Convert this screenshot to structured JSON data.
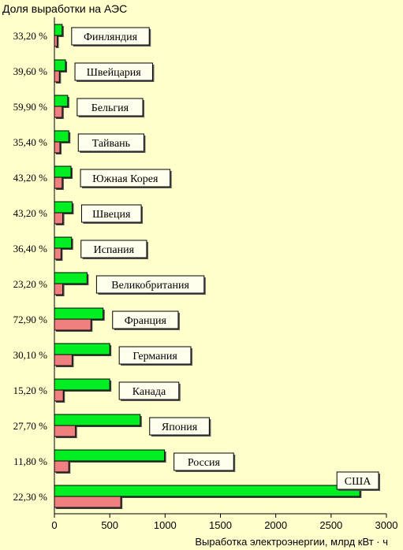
{
  "chart_data": {
    "type": "bar",
    "title": "Доля выработки на АЭС",
    "xlabel": "Выработка электроэнергии, млрд кВт · ч",
    "ylabel": "",
    "xlim": [
      0,
      3000
    ],
    "xticks": [
      0,
      500,
      1000,
      1500,
      2000,
      2500,
      3000
    ],
    "categories": [
      "Финляндия",
      "Швейцария",
      "Бельгия",
      "Тайвань",
      "Южная Корея",
      "Швеция",
      "Испания",
      "Великобритания",
      "Франция",
      "Германия",
      "Канада",
      "Япония",
      "Россия",
      "США"
    ],
    "shares": [
      "33,20 %",
      "39,60 %",
      "59,90 %",
      "35,40 %",
      "43,20 %",
      "43,20 %",
      "36,40 %",
      "23,20 %",
      "72,90 %",
      "30,10 %",
      "15,20 %",
      "27,70 %",
      "11,80 %",
      "22,30 %"
    ],
    "series": [
      {
        "color": "#00ee22",
        "values": [
          70,
          100,
          120,
          130,
          150,
          160,
          155,
          295,
          440,
          500,
          500,
          775,
          995,
          2760
        ]
      },
      {
        "color": "#f08080",
        "values": [
          25,
          45,
          70,
          50,
          70,
          75,
          60,
          75,
          330,
          160,
          80,
          190,
          130,
          600
        ]
      }
    ],
    "grid": false
  }
}
